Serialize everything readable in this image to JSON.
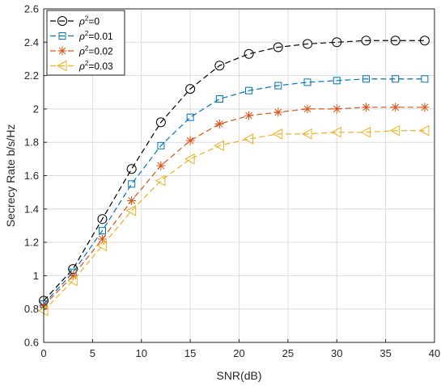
{
  "chart_data": {
    "type": "line",
    "xlabel": "SNR(dB)",
    "ylabel": "Secrecy Rate b/s/Hz",
    "xlim": [
      0,
      40
    ],
    "ylim": [
      0.6,
      2.6
    ],
    "xticks": [
      0,
      5,
      10,
      15,
      20,
      25,
      30,
      35,
      40
    ],
    "xtick_labels": [
      "0",
      "5",
      "10",
      "15",
      "20",
      "25",
      "30",
      "35",
      "40"
    ],
    "yticks": [
      0.6,
      0.8,
      1.0,
      1.2,
      1.4,
      1.6,
      1.8,
      2.0,
      2.2,
      2.4,
      2.6
    ],
    "ytick_labels": [
      "0.6",
      "0.8",
      "1",
      "1.2",
      "1.4",
      "1.6",
      "1.8",
      "2",
      "2.2",
      "2.4",
      "2.6"
    ],
    "grid": true,
    "legend_position": "top-left",
    "x": [
      0,
      3,
      6,
      9,
      12,
      15,
      18,
      21,
      24,
      27,
      30,
      33,
      36,
      39
    ],
    "series": [
      {
        "legend_base": "ρ",
        "legend_sup": "2",
        "legend_value": "=0",
        "color": "#000000",
        "marker": "circle",
        "values": [
          0.85,
          1.04,
          1.34,
          1.64,
          1.92,
          2.12,
          2.26,
          2.33,
          2.37,
          2.39,
          2.4,
          2.41,
          2.41,
          2.41
        ]
      },
      {
        "legend_base": "ρ",
        "legend_sup": "2",
        "legend_value": "=0.01",
        "color": "#0072BD",
        "marker": "square",
        "values": [
          0.83,
          1.02,
          1.27,
          1.55,
          1.78,
          1.95,
          2.06,
          2.11,
          2.14,
          2.16,
          2.17,
          2.18,
          2.18,
          2.18
        ]
      },
      {
        "legend_base": "ρ",
        "legend_sup": "2",
        "legend_value": "=0.02",
        "color": "#D95319",
        "marker": "asterisk",
        "values": [
          0.82,
          1.0,
          1.22,
          1.45,
          1.66,
          1.81,
          1.91,
          1.96,
          1.98,
          2.0,
          2.0,
          2.01,
          2.01,
          2.01
        ]
      },
      {
        "legend_base": "ρ",
        "legend_sup": "2",
        "legend_value": "=0.03",
        "color": "#EDB120",
        "marker": "triangle-left",
        "values": [
          0.79,
          0.97,
          1.18,
          1.39,
          1.57,
          1.7,
          1.78,
          1.82,
          1.85,
          1.85,
          1.86,
          1.86,
          1.87,
          1.87
        ]
      }
    ]
  }
}
